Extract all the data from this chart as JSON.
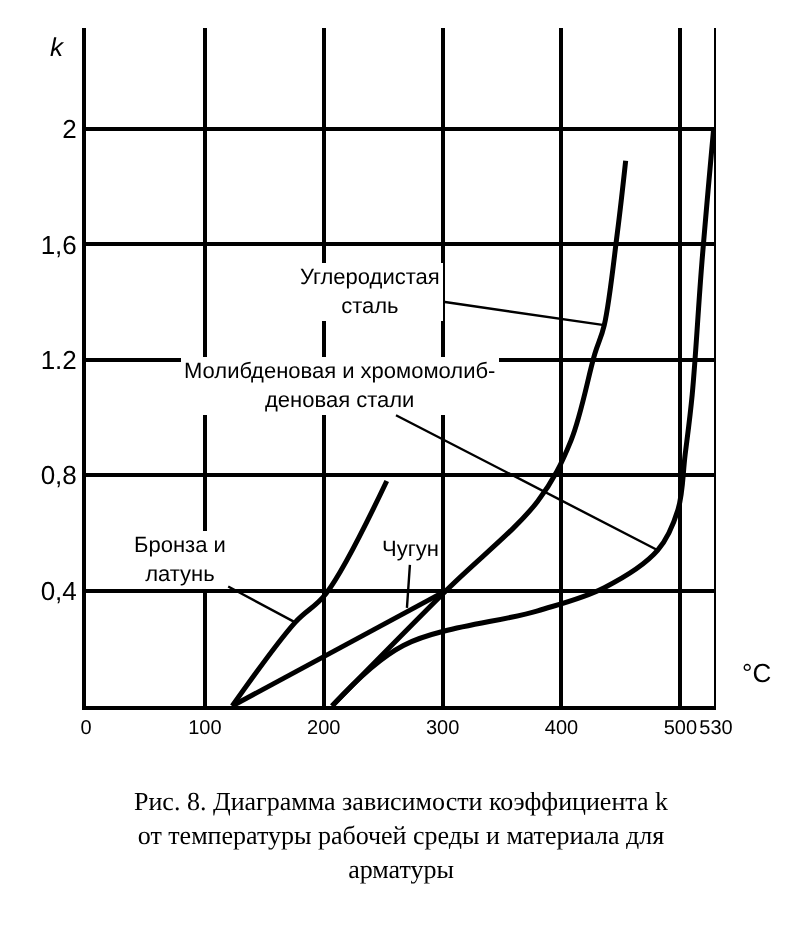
{
  "chart_data": {
    "type": "line",
    "title": "Рис. 8. Диаграмма зависимости коэффициента k от температуры рабочей среды и материала для арматуры",
    "xlabel": "°C",
    "ylabel": "k",
    "series": [
      {
        "color": "#000000",
        "x": [
          123,
          176,
          202,
          253
        ],
        "values": [
          0,
          0.29,
          0.39,
          0.78
        ]
      },
      {
        "color": "#000000",
        "x": [
          123,
          303
        ],
        "values": [
          0,
          0.4
        ]
      },
      {
        "color": "#000000",
        "x": [
          207,
          303,
          380,
          408,
          428,
          436,
          447,
          454
        ],
        "values": [
          0,
          0.4,
          0.71,
          0.92,
          1.22,
          1.32,
          1.64,
          1.89
        ]
      },
      {
        "color": "#000000",
        "x": [
          207,
          267,
          380,
          436,
          481,
          498,
          504,
          510,
          518,
          528
        ],
        "values": [
          0,
          0.21,
          0.33,
          0.41,
          0.54,
          0.68,
          0.87,
          1.08,
          1.53,
          2.0
        ]
      }
    ],
    "annotations": [
      {
        "text": "Углеродистая\nсталь",
        "x": 436,
        "y": 1.32
      },
      {
        "text": "Молибденовая и хромомолиб-\nденовая стали",
        "x": 481,
        "y": 0.54
      },
      {
        "text": "Бронза и\nлатунь",
        "x": 176,
        "y": 0.29
      },
      {
        "text": "Чугун",
        "x": 270,
        "y": 0.34
      }
    ],
    "xlim": [
      0,
      530
    ],
    "xticks": [
      0,
      100,
      200,
      300,
      400,
      500,
      530
    ],
    "ylim": [
      0,
      2.35
    ],
    "yticks": [
      {
        "value": 0.4,
        "label": "0,4"
      },
      {
        "value": 0.8,
        "label": "0,8"
      },
      {
        "value": 1.2,
        "label": "1.2"
      },
      {
        "value": 1.6,
        "label": "1,6"
      },
      2
    ],
    "grid": true,
    "line_style": "solid",
    "marker": "none"
  }
}
